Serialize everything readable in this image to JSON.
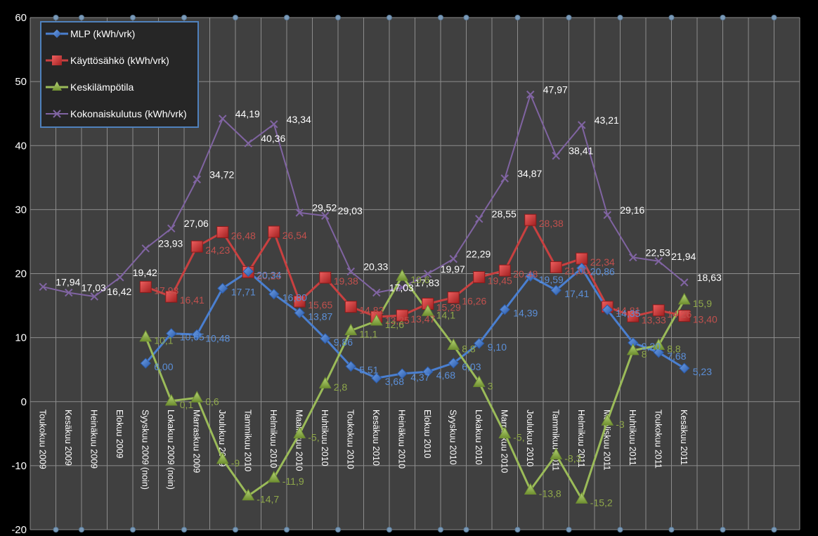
{
  "chart_data": {
    "type": "line",
    "title": "",
    "xlabel": "",
    "ylabel": "",
    "ylim": [
      -20,
      60
    ],
    "yticks": [
      -20,
      -10,
      0,
      10,
      20,
      30,
      40,
      50,
      60
    ],
    "grid": true,
    "legend_position": "top-left",
    "categories": [
      "Toukokuu 2009",
      "Kesäkuu 2009",
      "Heinäkuu 2009",
      "Elokuu 2009",
      "Syyskuu 2009 (noin)",
      "Lokakuu 2009 (noin)",
      "Marraskuu 2009",
      "Joulukuu 2009",
      "Tammikuu 2010",
      "Helmikuu 2010",
      "Maaliskuu 2010",
      "Huhtikuu 2010",
      "Toukokuu 2010",
      "Kesäkuu 2010",
      "Heinäkuu 2010",
      "Elokuu 2010",
      "Syyskuu 2010",
      "Lokakuu 2010",
      "Marraskuu 2010",
      "Joulukuu 2010",
      "Tammikuu 2011",
      "Helmikuu 2011",
      "Maaliskuu 2011",
      "Huhtikuu 2011",
      "Toukokuu 2011",
      "Kesäkuu 2011",
      "",
      "",
      "",
      ""
    ],
    "series": [
      {
        "name": "MLP (kWh/vrk)",
        "color": "#4a7fd0",
        "label_color": "#5b8fd8",
        "marker": "diamond",
        "values": [
          null,
          null,
          null,
          null,
          6.0,
          10.65,
          10.48,
          17.71,
          20.34,
          16.8,
          13.87,
          9.86,
          5.51,
          3.68,
          4.37,
          4.68,
          6.03,
          9.1,
          14.39,
          19.59,
          17.41,
          20.86,
          14.35,
          9.2,
          7.68,
          5.23
        ],
        "labels": [
          null,
          null,
          null,
          null,
          "6,00",
          "10,65",
          "10,48",
          "17,71",
          "20,34",
          "16,80",
          "13,87",
          "9,86",
          "5,51",
          "3,68",
          "4,37",
          "4,68",
          "6,03",
          "9,10",
          "14,39",
          "19,59",
          "17,41",
          "20,86",
          "14,35",
          "9,20",
          "7,68",
          "5,23"
        ]
      },
      {
        "name": "Käyttösähkö (kWh/vrk)",
        "color": "#c94040",
        "label_color": "#c0504d",
        "marker": "square",
        "values": [
          null,
          null,
          null,
          null,
          17.93,
          16.41,
          24.23,
          26.48,
          20.23,
          26.54,
          15.65,
          19.38,
          14.82,
          13.25,
          13.47,
          15.29,
          16.26,
          19.45,
          20.48,
          28.38,
          21.0,
          22.34,
          14.81,
          13.33,
          14.26,
          13.4
        ],
        "labels": [
          null,
          null,
          null,
          null,
          "17,93",
          "16,41",
          "24,23",
          "26,48",
          "20,23",
          "26,54",
          "15,65",
          "19,38",
          "14,82",
          "13,25",
          "13,47",
          "15,29",
          "16,26",
          "19,45",
          "20,48",
          "28,38",
          "21,00",
          "22,34",
          "14,81",
          "13,33",
          "14,26",
          "13,40"
        ]
      },
      {
        "name": "Keskilämpötila",
        "color": "#9bbb59",
        "label_color": "#8fa84a",
        "marker": "triangle",
        "values": [
          null,
          null,
          null,
          null,
          10.1,
          0.1,
          0.6,
          -9,
          -14.7,
          -11.9,
          -5.0,
          2.8,
          11.1,
          12.6,
          19.6,
          14.1,
          8.8,
          3,
          -5.0,
          -13.8,
          -8.3,
          -15.2,
          -3,
          8,
          8.8,
          15.9
        ],
        "labels": [
          null,
          null,
          null,
          null,
          "10,1",
          "0,1",
          "0,6",
          "-9",
          "-14,7",
          "-11,9",
          "-5,",
          "2,8",
          "11,1",
          "12,6",
          "19,6",
          "14,1",
          "8,8",
          "3",
          "-5,",
          "-13,8",
          "-8,3",
          "-15,2",
          "-3",
          "8",
          "8,8",
          "15,9"
        ]
      },
      {
        "name": "Kokonaiskulutus (kWh/vrk)",
        "color": "#8064a2",
        "label_color": "#ffffff",
        "marker": "x",
        "values": [
          17.94,
          17.03,
          16.42,
          19.42,
          23.93,
          27.06,
          34.72,
          44.19,
          40.36,
          43.34,
          29.52,
          29.03,
          20.33,
          17.03,
          17.83,
          19.97,
          22.29,
          28.55,
          34.87,
          47.97,
          38.41,
          43.21,
          29.16,
          22.53,
          21.94,
          18.63
        ],
        "labels": [
          "17,94",
          "17,03",
          "16,42",
          "19,42",
          "23,93",
          "27,06",
          "34,72",
          "44,19",
          "40,36",
          "43,34",
          "29,52",
          "29,03",
          "20,33",
          "17,03",
          "17,83",
          "19,97",
          "22,29",
          "28,55",
          "34,87",
          "47,97",
          "38,41",
          "43,21",
          "29,16",
          "22,53",
          "21,94",
          "18,63"
        ]
      }
    ]
  },
  "style": {
    "background": "#000000",
    "plot_background": "#404040",
    "grid_color": "#8c8c8c",
    "legend_border": "#4f81bd",
    "legend_background": "#262626"
  }
}
